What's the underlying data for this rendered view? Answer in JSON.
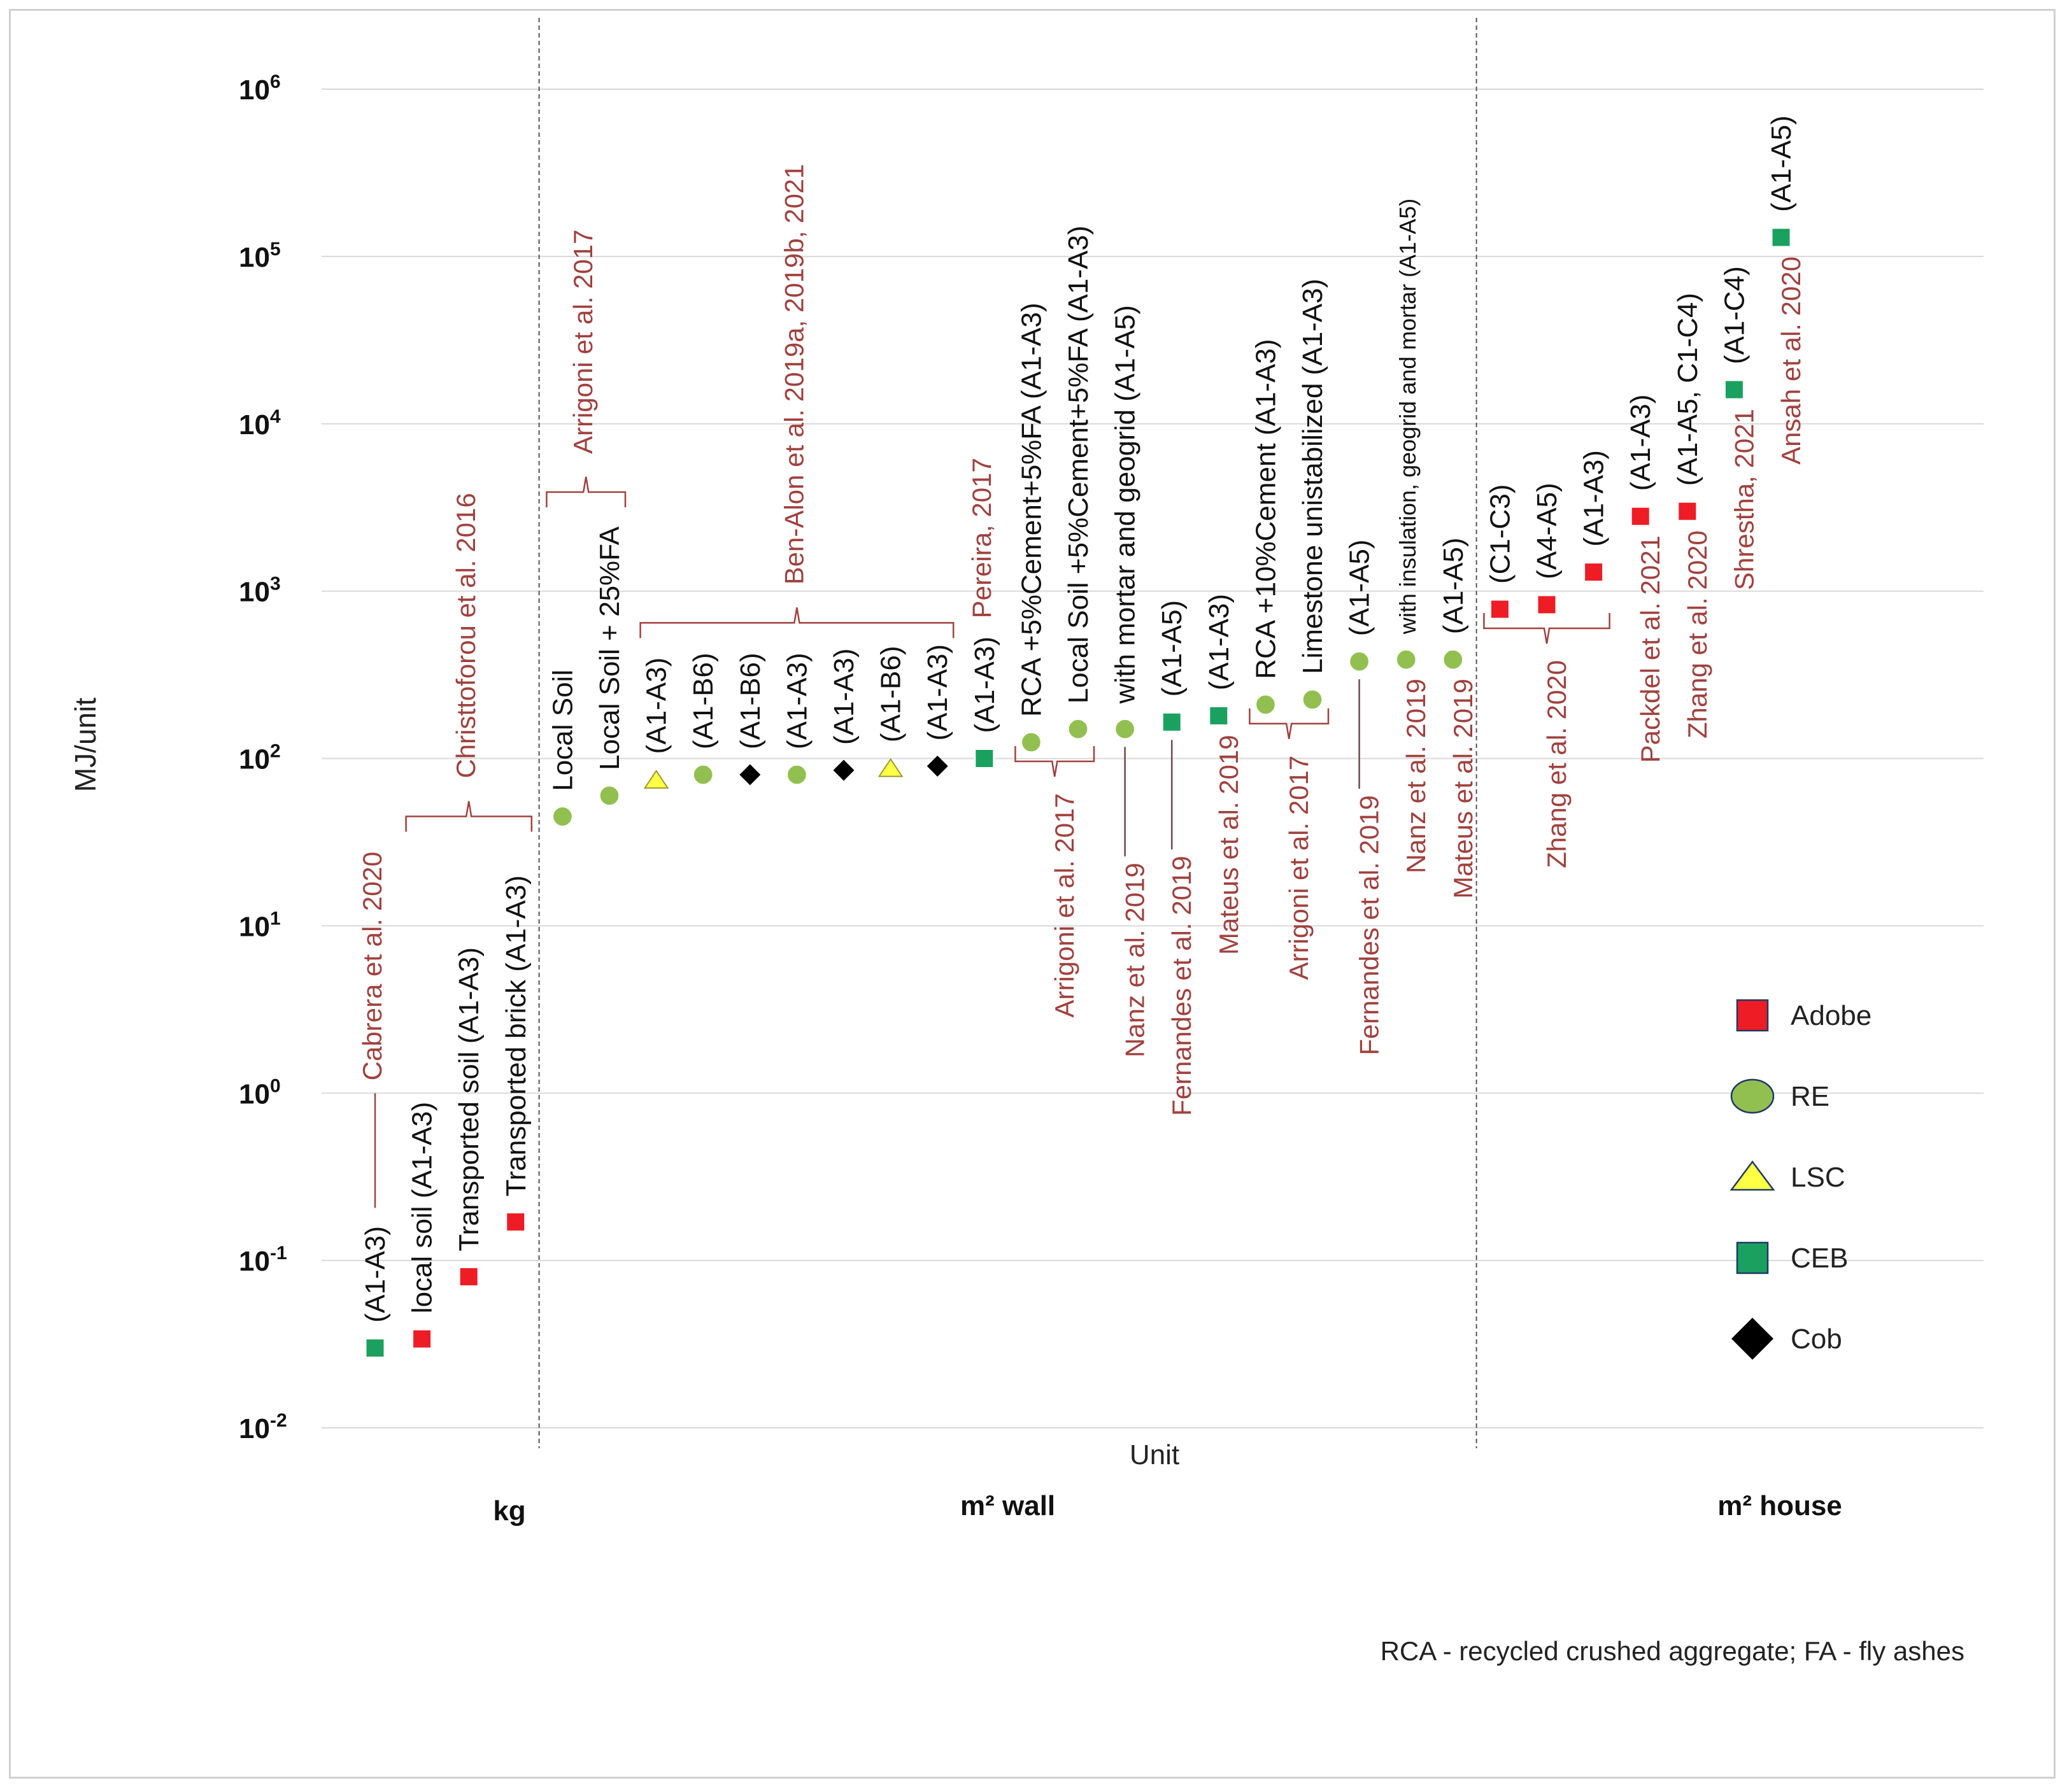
{
  "chart_data": {
    "type": "scatter",
    "title": "",
    "ylabel": "MJ/unit",
    "xlabel": "Unit",
    "yscale": "log",
    "ylim": [
      0.01,
      1000000
    ],
    "y_tick_labels": [
      {
        "exp": -2,
        "text": "10",
        "sup": "-2"
      },
      {
        "exp": -1,
        "text": "10",
        "sup": "-1"
      },
      {
        "exp": 0,
        "text": "10",
        "sup": "0"
      },
      {
        "exp": 1,
        "text": "10",
        "sup": "1"
      },
      {
        "exp": 2,
        "text": "10",
        "sup": "2"
      },
      {
        "exp": 3,
        "text": "10",
        "sup": "3"
      },
      {
        "exp": 4,
        "text": "10",
        "sup": "4"
      },
      {
        "exp": 5,
        "text": "10",
        "sup": "5"
      },
      {
        "exp": 6,
        "text": "10",
        "sup": "6"
      }
    ],
    "unit_groups": [
      {
        "label": "kg",
        "first": 1,
        "last": 4
      },
      {
        "label": "m² wall",
        "first": 5,
        "last": 24
      },
      {
        "label": "m² house",
        "first": 25,
        "last": 31
      }
    ],
    "legend": [
      {
        "type": "Adobe",
        "label": "Adobe",
        "shape": "square",
        "color": "#ee1c25"
      },
      {
        "type": "RE",
        "label": "RE",
        "shape": "circle",
        "color": "#92c050"
      },
      {
        "type": "LSC",
        "label": "LSC",
        "shape": "triangle",
        "color": "#ffff44"
      },
      {
        "type": "CEB",
        "label": "CEB",
        "shape": "square",
        "color": "#1aa15f"
      },
      {
        "type": "Cob",
        "label": "Cob",
        "shape": "diamond",
        "color": "#000000"
      }
    ],
    "points": [
      {
        "i": 1,
        "type": "CEB",
        "value": 0.03,
        "label": "(A1-A3)"
      },
      {
        "i": 2,
        "type": "Adobe",
        "value": 0.034,
        "label": "local soil (A1-A3)"
      },
      {
        "i": 3,
        "type": "Adobe",
        "value": 0.08,
        "label": "Transported soil  (A1-A3)"
      },
      {
        "i": 4,
        "type": "Adobe",
        "value": 0.17,
        "label": "Transported brick (A1-A3)"
      },
      {
        "i": 5,
        "type": "RE",
        "value": 45,
        "label": "Local Soil"
      },
      {
        "i": 6,
        "type": "RE",
        "value": 60,
        "label": "Local Soil + 25%FA"
      },
      {
        "i": 7,
        "type": "LSC",
        "value": 75,
        "label": "(A1-A3)"
      },
      {
        "i": 8,
        "type": "RE",
        "value": 80,
        "label": "(A1-B6)"
      },
      {
        "i": 9,
        "type": "Cob",
        "value": 80,
        "label": "(A1-B6)"
      },
      {
        "i": 10,
        "type": "RE",
        "value": 80,
        "label": "(A1-A3)"
      },
      {
        "i": 11,
        "type": "Cob",
        "value": 85,
        "label": "(A1-A3)"
      },
      {
        "i": 12,
        "type": "LSC",
        "value": 88,
        "label": "(A1-B6)"
      },
      {
        "i": 13,
        "type": "Cob",
        "value": 90,
        "label": "(A1-A3)"
      },
      {
        "i": 14,
        "type": "CEB",
        "value": 100,
        "label": "(A1-A3)"
      },
      {
        "i": 15,
        "type": "RE",
        "value": 125,
        "label": "RCA +5%Cement+5%FA (A1-A3)"
      },
      {
        "i": 16,
        "type": "RE",
        "value": 150,
        "label": "Local Soil +5%Cement+5%FA (A1-A3)"
      },
      {
        "i": 17,
        "type": "RE",
        "value": 150,
        "label": "with mortar and geogrid (A1-A5)"
      },
      {
        "i": 18,
        "type": "CEB",
        "value": 165,
        "label": "(A1-A5)"
      },
      {
        "i": 19,
        "type": "CEB",
        "value": 180,
        "label": "(A1-A3)"
      },
      {
        "i": 20,
        "type": "RE",
        "value": 210,
        "label": "RCA +10%Cement (A1-A3)"
      },
      {
        "i": 21,
        "type": "RE",
        "value": 225,
        "label": "Limestone unistabilized (A1-A3)"
      },
      {
        "i": 22,
        "type": "RE",
        "value": 380,
        "label": "(A1-A5)"
      },
      {
        "i": 23,
        "type": "RE",
        "value": 390,
        "label": "with insulation, geogrid and mortar (A1-A5)"
      },
      {
        "i": 24,
        "type": "RE",
        "value": 390,
        "label": "(A1-A5)"
      },
      {
        "i": 25,
        "type": "Adobe",
        "value": 780,
        "label": "(C1-C3)"
      },
      {
        "i": 26,
        "type": "Adobe",
        "value": 830,
        "label": "(A4-A5)"
      },
      {
        "i": 27,
        "type": "Adobe",
        "value": 1300,
        "label": "(A1-A3)"
      },
      {
        "i": 28,
        "type": "Adobe",
        "value": 2800,
        "label": "(A1-A3)"
      },
      {
        "i": 29,
        "type": "Adobe",
        "value": 3000,
        "label": "(A1-A5, C1-C4)"
      },
      {
        "i": 30,
        "type": "CEB",
        "value": 16000,
        "label": "(A1-C4)"
      },
      {
        "i": 31,
        "type": "CEB",
        "value": 130000,
        "label": "(A1-A5)"
      }
    ],
    "references": [
      {
        "text": "Cabrera et al. 2020",
        "from": 1,
        "to": 1,
        "side": "above",
        "style": "line"
      },
      {
        "text": "Christtoforou  et al. 2016",
        "from": 2,
        "to": 4,
        "side": "above",
        "style": "brace"
      },
      {
        "text": "Arrigoni et al. 2017",
        "from": 5,
        "to": 6,
        "side": "above",
        "style": "brace"
      },
      {
        "text": "Ben-Alon et al. 2019a, 2019b, 2021",
        "from": 7,
        "to": 13,
        "side": "above",
        "style": "brace"
      },
      {
        "text": "Pereira, 2017",
        "from": 14,
        "to": 14,
        "side": "above",
        "style": "none"
      },
      {
        "text": "Arrigoni et al. 2017",
        "from": 15,
        "to": 16,
        "side": "below",
        "style": "brace"
      },
      {
        "text": "Nanz et al. 2019",
        "from": 17,
        "to": 17,
        "side": "below",
        "style": "line"
      },
      {
        "text": "Fernandes et al. 2019",
        "from": 18,
        "to": 18,
        "side": "below",
        "style": "line"
      },
      {
        "text": "Mateus et al.  2019",
        "from": 19,
        "to": 19,
        "side": "below",
        "style": "none"
      },
      {
        "text": "Arrigoni et al. 2017",
        "from": 20,
        "to": 21,
        "side": "below",
        "style": "brace"
      },
      {
        "text": "Fernandes et al. 2019",
        "from": 22,
        "to": 22,
        "side": "below",
        "style": "line"
      },
      {
        "text": "Nanz et al. 2019",
        "from": 23,
        "to": 23,
        "side": "below",
        "style": "none"
      },
      {
        "text": "Mateus et al.  2019",
        "from": 24,
        "to": 24,
        "side": "below",
        "style": "none"
      },
      {
        "text": "Zhang et al. 2020",
        "from": 25,
        "to": 27,
        "side": "below",
        "style": "brace"
      },
      {
        "text": "Packdel et al. 2021",
        "from": 28,
        "to": 28,
        "side": "below",
        "style": "none"
      },
      {
        "text": "Zhang et al. 2020",
        "from": 29,
        "to": 29,
        "side": "below",
        "style": "none"
      },
      {
        "text": "Shrestha, 2021",
        "from": 30,
        "to": 30,
        "side": "below",
        "style": "none"
      },
      {
        "text": "Ansah et al. 2020",
        "from": 31,
        "to": 31,
        "side": "below",
        "style": "none"
      }
    ],
    "footnote": "RCA - recycled crushed aggregate; FA - fly ashes",
    "grid": true,
    "legend_position": "right"
  }
}
